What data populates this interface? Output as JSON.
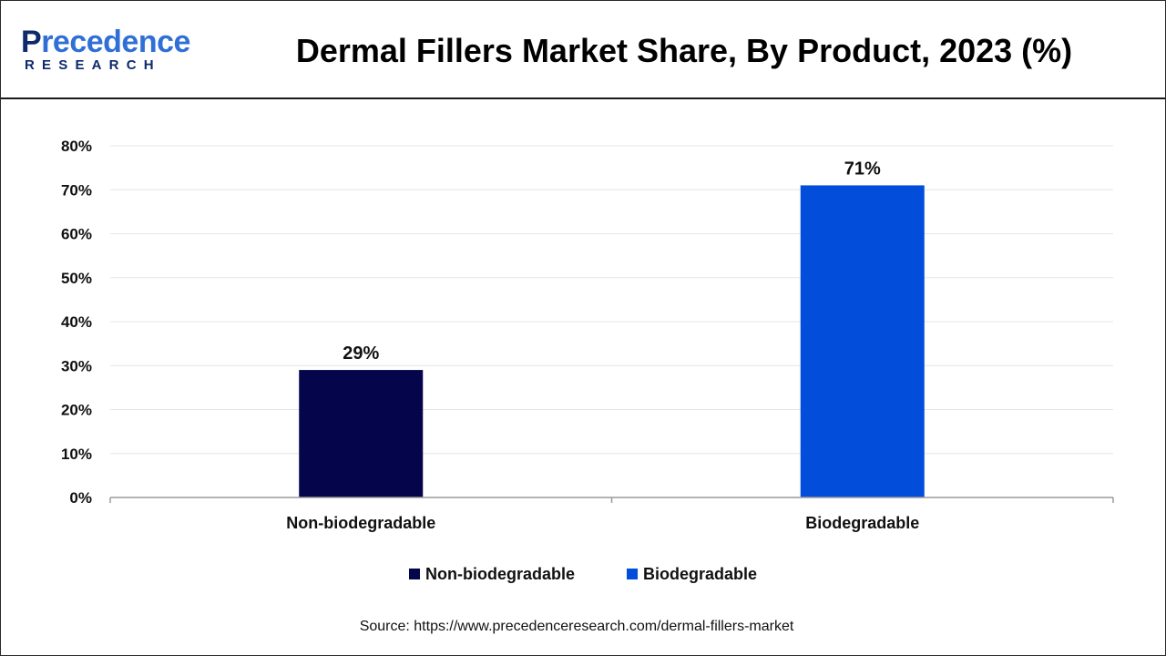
{
  "header": {
    "logo": {
      "word_initial": "P",
      "word_rest": "recedence",
      "sub": "RESEARCH"
    },
    "title": "Dermal Fillers Market Share, By Product, 2023 (%)"
  },
  "colors": {
    "logo_navy": "#0e2a6b",
    "logo_blue": "#2f6fd6",
    "grid": "#e6e6e6",
    "axis": "#9a9a9a"
  },
  "chart_data": {
    "type": "bar",
    "categories": [
      "Non-biodegradable",
      "Biodegradable"
    ],
    "values": [
      29,
      71
    ],
    "data_labels": [
      "29%",
      "71%"
    ],
    "colors": [
      "#05054b",
      "#034ddb"
    ],
    "ylim": [
      0,
      80
    ],
    "yticks": [
      0,
      10,
      20,
      30,
      40,
      50,
      60,
      70,
      80
    ],
    "ytick_labels": [
      "0%",
      "10%",
      "20%",
      "30%",
      "40%",
      "50%",
      "60%",
      "70%",
      "80%"
    ],
    "grid": true,
    "legend": {
      "placement": "bottom",
      "entries": [
        {
          "label": "Non-biodegradable",
          "color": "#05054b"
        },
        {
          "label": "Biodegradable",
          "color": "#034ddb"
        }
      ]
    }
  },
  "footer": {
    "source": "Source: https://www.precedenceresearch.com/dermal-fillers-market"
  }
}
